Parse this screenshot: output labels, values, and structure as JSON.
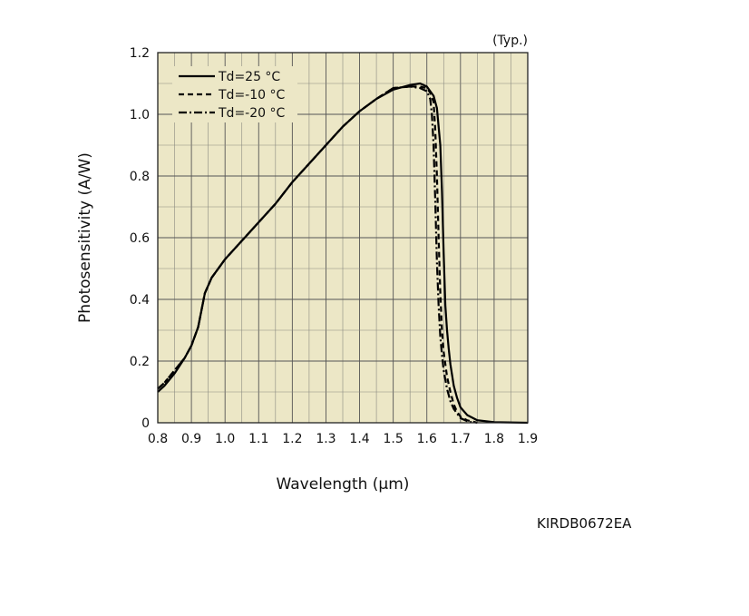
{
  "chart_data": {
    "type": "line",
    "title": "",
    "note": "(Typ.)",
    "xlabel": "Wavelength (μm)",
    "ylabel": "Photosensitivity (A/W)",
    "xlim": [
      0.8,
      1.9
    ],
    "ylim": [
      0,
      1.2
    ],
    "x_ticks": [
      0.8,
      0.9,
      1.0,
      1.1,
      1.2,
      1.3,
      1.4,
      1.5,
      1.6,
      1.7,
      1.8,
      1.9
    ],
    "x_tick_labels": [
      "0.8",
      "0.9",
      "1.0",
      "1.1",
      "1.2",
      "1.3",
      "1.4",
      "1.5",
      "1.6",
      "1.7",
      "1.8",
      "1.9"
    ],
    "y_ticks": [
      0,
      0.2,
      0.4,
      0.6,
      0.8,
      1.0,
      1.2
    ],
    "y_tick_labels": [
      "0",
      "0.2",
      "0.4",
      "0.6",
      "0.8",
      "1.0",
      "1.2"
    ],
    "grid": true,
    "legend_position": "top-left",
    "series": [
      {
        "name": "Td=25 °C",
        "style": "solid",
        "x": [
          0.8,
          0.82,
          0.85,
          0.88,
          0.9,
          0.92,
          0.94,
          0.96,
          1.0,
          1.05,
          1.1,
          1.15,
          1.2,
          1.25,
          1.3,
          1.35,
          1.4,
          1.45,
          1.5,
          1.55,
          1.58,
          1.6,
          1.62,
          1.63,
          1.64,
          1.645,
          1.65,
          1.655,
          1.66,
          1.665,
          1.67,
          1.68,
          1.69,
          1.7,
          1.72,
          1.75,
          1.8,
          1.9
        ],
        "y": [
          0.1,
          0.12,
          0.16,
          0.21,
          0.25,
          0.31,
          0.42,
          0.47,
          0.53,
          0.59,
          0.65,
          0.71,
          0.78,
          0.84,
          0.9,
          0.96,
          1.01,
          1.05,
          1.08,
          1.095,
          1.1,
          1.09,
          1.06,
          1.02,
          0.9,
          0.75,
          0.55,
          0.38,
          0.3,
          0.24,
          0.19,
          0.12,
          0.08,
          0.05,
          0.025,
          0.008,
          0.002,
          0.0
        ]
      },
      {
        "name": "Td=-10 °C",
        "style": "dashed",
        "x": [
          0.8,
          0.82,
          0.85,
          0.88,
          0.9,
          0.92,
          0.94,
          0.96,
          1.0,
          1.05,
          1.1,
          1.15,
          1.2,
          1.25,
          1.3,
          1.35,
          1.4,
          1.45,
          1.5,
          1.55,
          1.58,
          1.6,
          1.61,
          1.62,
          1.625,
          1.63,
          1.635,
          1.64,
          1.645,
          1.65,
          1.66,
          1.67,
          1.68,
          1.69,
          1.7,
          1.72,
          1.75
        ],
        "y": [
          0.11,
          0.13,
          0.17,
          0.21,
          0.25,
          0.31,
          0.42,
          0.47,
          0.53,
          0.59,
          0.65,
          0.71,
          0.78,
          0.84,
          0.9,
          0.96,
          1.01,
          1.05,
          1.085,
          1.09,
          1.09,
          1.085,
          1.07,
          1.04,
          0.95,
          0.8,
          0.6,
          0.42,
          0.3,
          0.23,
          0.15,
          0.1,
          0.06,
          0.035,
          0.02,
          0.008,
          0.0
        ]
      },
      {
        "name": "Td=-20 °C",
        "style": "dashdot",
        "x": [
          0.8,
          0.82,
          0.85,
          0.88,
          0.9,
          0.92,
          0.94,
          0.96,
          1.0,
          1.05,
          1.1,
          1.15,
          1.2,
          1.25,
          1.3,
          1.35,
          1.4,
          1.45,
          1.5,
          1.55,
          1.58,
          1.6,
          1.61,
          1.615,
          1.62,
          1.625,
          1.63,
          1.635,
          1.64,
          1.645,
          1.65,
          1.66,
          1.67,
          1.68,
          1.69,
          1.7,
          1.72,
          1.74
        ],
        "y": [
          0.11,
          0.13,
          0.17,
          0.21,
          0.25,
          0.31,
          0.42,
          0.47,
          0.53,
          0.59,
          0.65,
          0.71,
          0.78,
          0.84,
          0.9,
          0.96,
          1.01,
          1.05,
          1.085,
          1.09,
          1.085,
          1.075,
          1.05,
          1.0,
          0.9,
          0.72,
          0.52,
          0.38,
          0.28,
          0.22,
          0.17,
          0.11,
          0.07,
          0.045,
          0.03,
          0.015,
          0.005,
          0.0
        ]
      }
    ]
  },
  "figure_code": "KIRDB0672EA"
}
